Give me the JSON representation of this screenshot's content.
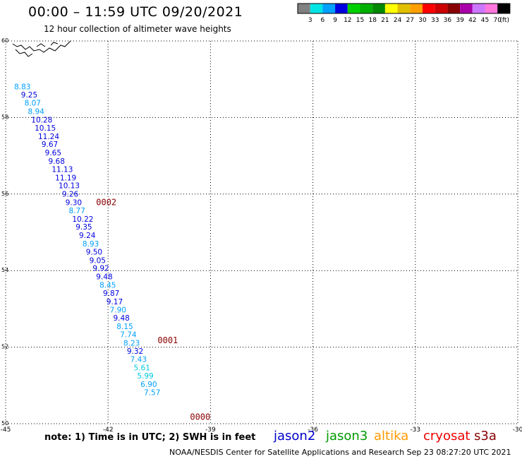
{
  "header": {
    "title": "00:00 – 11:59 UTC 09/20/2021",
    "subtitle": "12 hour collection of altimeter wave heights"
  },
  "scale": {
    "colors": [
      "#808080",
      "#00e4e4",
      "#00a0ff",
      "#0000e0",
      "#00d000",
      "#00b000",
      "#008800",
      "#ffff00",
      "#e0c000",
      "#ffa000",
      "#ff0000",
      "#cc0000",
      "#880000",
      "#aa00aa",
      "#cc77ff",
      "#ff77dd",
      "#000000"
    ],
    "labels": [
      "3",
      "6",
      "9",
      "12",
      "15",
      "18",
      "21",
      "24",
      "27",
      "30",
      "33",
      "36",
      "39",
      "42",
      "45",
      "70"
    ],
    "unit": "(ft)"
  },
  "footer": {
    "note": "note:  1) Time is in UTC;  2) SWH is in feet",
    "credit": "NOAA/NESDIS Center for Satellite Applications and Research     Sep 23 08:27:20 UTC 2021"
  },
  "satellites": [
    {
      "name": "jason2",
      "color": "#0000cc"
    },
    {
      "name": "jason3",
      "color": "#009900"
    },
    {
      "name": "altika",
      "color": "#ff9900"
    },
    {
      "name": "cryosat",
      "color": "#ee0000"
    },
    {
      "name": "s3a",
      "color": "#880000"
    }
  ],
  "chart_data": {
    "type": "scatter",
    "xlim": [
      -45,
      -30
    ],
    "ylim": [
      50,
      60
    ],
    "x_ticks": [
      "-45",
      "-42",
      "-39",
      "-36",
      "-33",
      "-30"
    ],
    "y_ticks": [
      "50",
      "52",
      "54",
      "56",
      "58",
      "60"
    ],
    "grid": true,
    "series": [
      {
        "name": "swh",
        "points": [
          {
            "lon": -44.75,
            "lat": 58.74,
            "value": "8.83",
            "color": "#00a0ff"
          },
          {
            "lon": -44.55,
            "lat": 58.52,
            "value": "9.25",
            "color": "#0000e0"
          },
          {
            "lon": -44.45,
            "lat": 58.31,
            "value": "8.07",
            "color": "#00a0ff"
          },
          {
            "lon": -44.35,
            "lat": 58.09,
            "value": "8.94",
            "color": "#00a0ff"
          },
          {
            "lon": -44.25,
            "lat": 57.87,
            "value": "10.28",
            "color": "#0000e0"
          },
          {
            "lon": -44.15,
            "lat": 57.66,
            "value": "10.15",
            "color": "#0000e0"
          },
          {
            "lon": -44.05,
            "lat": 57.44,
            "value": "11.24",
            "color": "#0000e0"
          },
          {
            "lon": -43.95,
            "lat": 57.23,
            "value": "9.67",
            "color": "#0000e0"
          },
          {
            "lon": -43.85,
            "lat": 57.01,
            "value": "9.65",
            "color": "#0000e0"
          },
          {
            "lon": -43.75,
            "lat": 56.79,
            "value": "9.68",
            "color": "#0000e0"
          },
          {
            "lon": -43.65,
            "lat": 56.58,
            "value": "11.13",
            "color": "#0000e0"
          },
          {
            "lon": -43.55,
            "lat": 56.36,
            "value": "11.19",
            "color": "#0000e0"
          },
          {
            "lon": -43.45,
            "lat": 56.15,
            "value": "10.13",
            "color": "#0000e0"
          },
          {
            "lon": -43.35,
            "lat": 55.93,
            "value": "9.26",
            "color": "#0000e0"
          },
          {
            "lon": -43.25,
            "lat": 55.71,
            "value": "9.30",
            "color": "#0000e0"
          },
          {
            "lon": -43.15,
            "lat": 55.5,
            "value": "8.77",
            "color": "#00a0ff"
          },
          {
            "lon": -43.05,
            "lat": 55.28,
            "value": "10.22",
            "color": "#0000e0"
          },
          {
            "lon": -42.95,
            "lat": 55.07,
            "value": "9.35",
            "color": "#0000e0"
          },
          {
            "lon": -42.85,
            "lat": 54.85,
            "value": "9.24",
            "color": "#0000e0"
          },
          {
            "lon": -42.75,
            "lat": 54.63,
            "value": "8.93",
            "color": "#00a0ff"
          },
          {
            "lon": -42.65,
            "lat": 54.42,
            "value": "9.50",
            "color": "#0000e0"
          },
          {
            "lon": -42.55,
            "lat": 54.2,
            "value": "9.05",
            "color": "#0000e0"
          },
          {
            "lon": -42.45,
            "lat": 53.99,
            "value": "9.92",
            "color": "#0000e0"
          },
          {
            "lon": -42.35,
            "lat": 53.77,
            "value": "9.48",
            "color": "#0000e0"
          },
          {
            "lon": -42.25,
            "lat": 53.55,
            "value": "8.45",
            "color": "#00a0ff"
          },
          {
            "lon": -42.15,
            "lat": 53.34,
            "value": "9.87",
            "color": "#0000e0"
          },
          {
            "lon": -42.05,
            "lat": 53.12,
            "value": "9.17",
            "color": "#0000e0"
          },
          {
            "lon": -41.95,
            "lat": 52.91,
            "value": "7.90",
            "color": "#00a0ff"
          },
          {
            "lon": -41.85,
            "lat": 52.69,
            "value": "9.48",
            "color": "#0000e0"
          },
          {
            "lon": -41.75,
            "lat": 52.47,
            "value": "8.15",
            "color": "#00a0ff"
          },
          {
            "lon": -41.65,
            "lat": 52.26,
            "value": "7.74",
            "color": "#00a0ff"
          },
          {
            "lon": -41.55,
            "lat": 52.04,
            "value": "8.23",
            "color": "#00a0ff"
          },
          {
            "lon": -41.45,
            "lat": 51.83,
            "value": "9.32",
            "color": "#0000e0"
          },
          {
            "lon": -41.35,
            "lat": 51.61,
            "value": "7.43",
            "color": "#00a0ff"
          },
          {
            "lon": -41.25,
            "lat": 51.39,
            "value": "5.61",
            "color": "#00c8e0"
          },
          {
            "lon": -41.15,
            "lat": 51.18,
            "value": "5.99",
            "color": "#00c8e0"
          },
          {
            "lon": -41.05,
            "lat": 50.96,
            "value": "6.90",
            "color": "#00a0ff"
          },
          {
            "lon": -40.95,
            "lat": 50.75,
            "value": "7.57",
            "color": "#00a0ff"
          }
        ]
      }
    ],
    "time_labels": [
      {
        "lon": -42.35,
        "lat": 55.71,
        "text": "0002"
      },
      {
        "lon": -40.55,
        "lat": 52.1,
        "text": "0001"
      },
      {
        "lon": -39.6,
        "lat": 50.1,
        "text": "0000"
      }
    ]
  }
}
